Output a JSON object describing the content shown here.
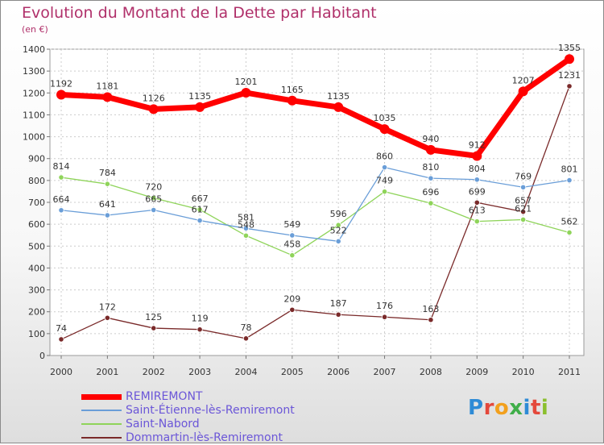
{
  "header": {
    "title": "Evolution du Montant de la Dette par Habitant",
    "unit": "(en €)"
  },
  "brand": {
    "text": "Proxiti",
    "letter_colors": [
      "#2e8bd6",
      "#e4483b",
      "#f2a01d",
      "#3fae49",
      "#2e8bd6",
      "#e4483b",
      "#8bbf2e"
    ]
  },
  "chart_data": {
    "type": "line",
    "title": "Evolution du Montant de la Dette par Habitant",
    "ylabel": "(en €)",
    "x": [
      "2000",
      "2001",
      "2002",
      "2003",
      "2004",
      "2005",
      "2006",
      "2007",
      "2008",
      "2009",
      "2010",
      "2011"
    ],
    "ylim": [
      0,
      1400
    ],
    "yticks": [
      0,
      100,
      200,
      300,
      400,
      500,
      600,
      700,
      800,
      900,
      1000,
      1100,
      1200,
      1300,
      1400
    ],
    "grid": true,
    "legend_position": "bottom-left",
    "series": [
      {
        "name": "REMIREMONT",
        "color": "#ff0000",
        "values": [
          1192,
          1181,
          1126,
          1135,
          1201,
          1165,
          1135,
          1035,
          940,
          912,
          1207,
          1355
        ]
      },
      {
        "name": "Saint-Étienne-lès-Remiremont",
        "color": "#6a9ed8",
        "values": [
          664,
          641,
          665,
          617,
          581,
          549,
          522,
          860,
          810,
          804,
          769,
          801
        ]
      },
      {
        "name": "Saint-Nabord",
        "color": "#8fd45a",
        "values": [
          814,
          784,
          720,
          667,
          548,
          458,
          596,
          749,
          696,
          613,
          621,
          562
        ]
      },
      {
        "name": "Dommartin-lès-Remiremont",
        "color": "#7a2a2a",
        "values": [
          74,
          172,
          125,
          119,
          78,
          209,
          187,
          176,
          163,
          699,
          657,
          1231
        ]
      }
    ]
  }
}
